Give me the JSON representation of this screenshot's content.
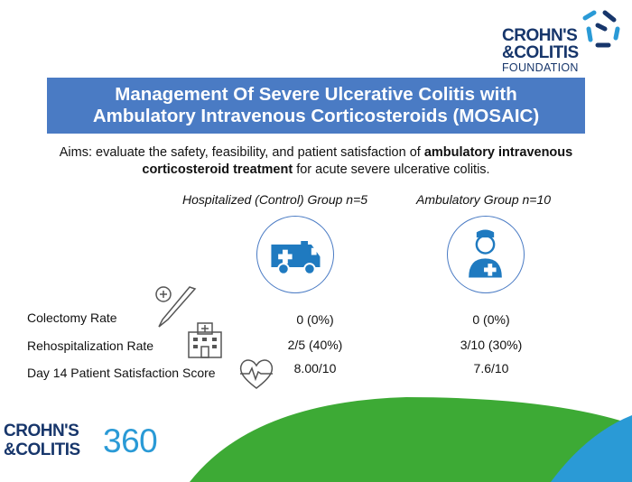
{
  "logo_top": {
    "line1": "CROHN'S",
    "line2": "&COLITIS",
    "line3": "FOUNDATION"
  },
  "title": {
    "line1": "Management Of Severe Ulcerative Colitis with",
    "line2": "Ambulatory Intravenous Corticosteroids (MOSAIC)"
  },
  "aims": {
    "prefix": "Aims: evaluate the safety, feasibility, and patient satisfaction of ",
    "bold": "ambulatory intravenous corticosteroid treatment",
    "suffix": " for acute severe ulcerative colitis."
  },
  "groups": [
    {
      "heading": "Hospitalized (Control) Group n=5",
      "icon": "ambulance-icon"
    },
    {
      "heading": "Ambulatory Group n=10",
      "icon": "doctor-icon"
    }
  ],
  "rows": [
    {
      "label": "Colectomy Rate",
      "icon": "scalpel-icon",
      "hospitalized": "0 (0%)",
      "ambulatory": "0 (0%)"
    },
    {
      "label": "Rehospitalization Rate",
      "icon": "hospital-building-icon",
      "hospitalized": "2/5 (40%)",
      "ambulatory": "3/10 (30%)"
    },
    {
      "label": "Day 14 Patient Satisfaction Score",
      "icon": "heart-pulse-icon",
      "hospitalized": "8.00/10",
      "ambulatory": "7.6/10"
    }
  ],
  "logo_bottom": {
    "line1": "CROHN'S",
    "line2": "&COLITIS",
    "number": "360"
  },
  "colors": {
    "navy": "#17366b",
    "banner_blue": "#4a7bc4",
    "cyan": "#2a9ad6",
    "green": "#3daa35"
  }
}
